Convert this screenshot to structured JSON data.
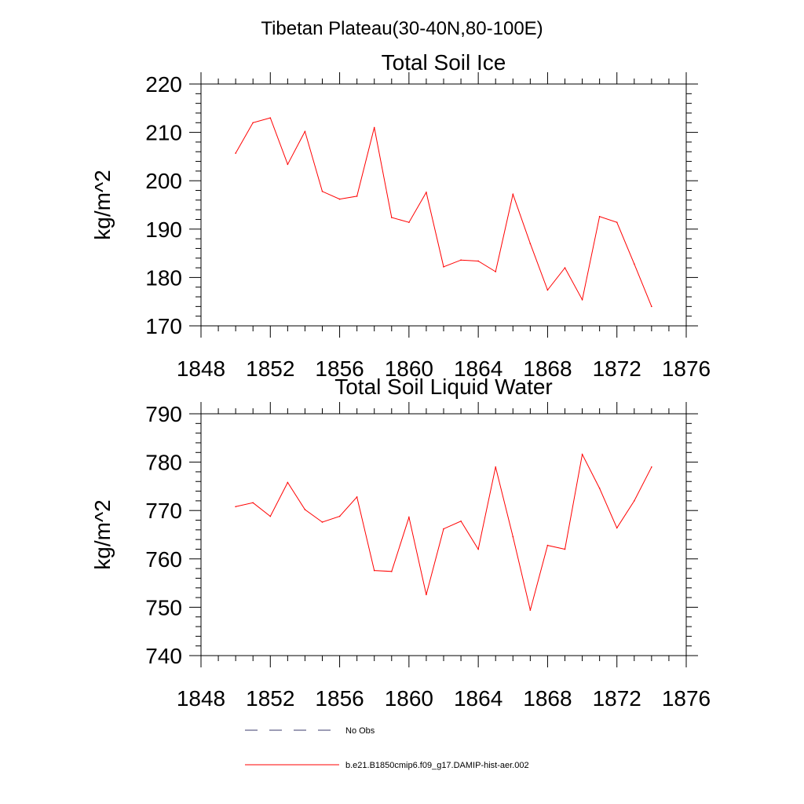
{
  "figure": {
    "main_title": "Tibetan Plateau(30-40N,80-100E)"
  },
  "chart_data": [
    {
      "type": "line",
      "title": "Total Soil Ice",
      "xlabel": "",
      "ylabel": "kg/m^2",
      "xlim": [
        1848,
        1876
      ],
      "ylim": [
        170,
        220
      ],
      "x_ticks": [
        1848,
        1852,
        1856,
        1860,
        1864,
        1868,
        1872,
        1876
      ],
      "y_ticks": [
        170,
        180,
        190,
        200,
        210,
        220
      ],
      "grid": false,
      "series": [
        {
          "name": "b.e21.B1850cmip6.f09_g17.DAMIP-hist-aer.002",
          "color": "#ff0000",
          "x": [
            1850,
            1851,
            1852,
            1853,
            1854,
            1855,
            1856,
            1857,
            1858,
            1859,
            1860,
            1861,
            1862,
            1863,
            1864,
            1865,
            1866,
            1867,
            1868,
            1869,
            1870,
            1871,
            1872,
            1873,
            1874
          ],
          "values": [
            205.7,
            212.0,
            213.0,
            203.4,
            210.2,
            197.8,
            196.2,
            196.8,
            211.0,
            192.4,
            191.4,
            197.6,
            182.2,
            183.6,
            183.4,
            181.2,
            197.2,
            187.0,
            177.4,
            182.0,
            175.4,
            192.6,
            191.4,
            182.8,
            174.0
          ]
        }
      ]
    },
    {
      "type": "line",
      "title": "Total Soil Liquid Water",
      "xlabel": "",
      "ylabel": "kg/m^2",
      "xlim": [
        1848,
        1876
      ],
      "ylim": [
        740,
        790
      ],
      "x_ticks": [
        1848,
        1852,
        1856,
        1860,
        1864,
        1868,
        1872,
        1876
      ],
      "y_ticks": [
        740,
        750,
        760,
        770,
        780,
        790
      ],
      "grid": false,
      "series": [
        {
          "name": "b.e21.B1850cmip6.f09_g17.DAMIP-hist-aer.002",
          "color": "#ff0000",
          "x": [
            1850,
            1851,
            1852,
            1853,
            1854,
            1855,
            1856,
            1857,
            1858,
            1859,
            1860,
            1861,
            1862,
            1863,
            1864,
            1865,
            1866,
            1867,
            1868,
            1869,
            1870,
            1871,
            1872,
            1873,
            1874
          ],
          "values": [
            770.8,
            771.6,
            768.8,
            775.8,
            770.2,
            767.6,
            768.8,
            772.8,
            757.6,
            757.4,
            768.6,
            752.6,
            766.2,
            767.8,
            762.0,
            779.0,
            764.6,
            749.4,
            762.8,
            762.0,
            781.6,
            774.6,
            766.4,
            772.0,
            779.0
          ]
        }
      ]
    }
  ],
  "legend": {
    "placement": "bottom",
    "items": [
      {
        "label": "No Obs",
        "color": "#3b3b6e",
        "style": "dashed"
      },
      {
        "label": "b.e21.B1850cmip6.f09_g17.DAMIP-hist-aer.002",
        "color": "#ff0000",
        "style": "solid"
      }
    ]
  }
}
